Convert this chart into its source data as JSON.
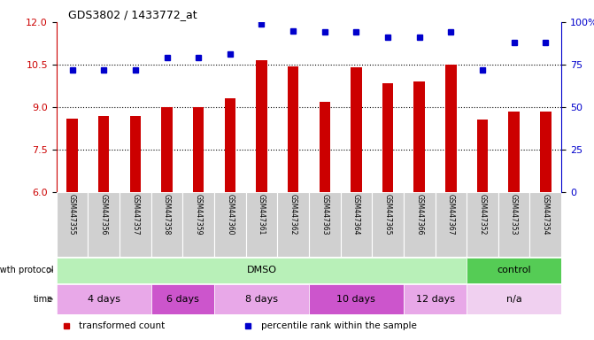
{
  "title": "GDS3802 / 1433772_at",
  "samples": [
    "GSM447355",
    "GSM447356",
    "GSM447357",
    "GSM447358",
    "GSM447359",
    "GSM447360",
    "GSM447361",
    "GSM447362",
    "GSM447363",
    "GSM447364",
    "GSM447365",
    "GSM447366",
    "GSM447367",
    "GSM447352",
    "GSM447353",
    "GSM447354"
  ],
  "bar_values": [
    8.6,
    8.7,
    8.7,
    9.0,
    9.0,
    9.3,
    10.65,
    10.45,
    9.2,
    10.4,
    9.85,
    9.9,
    10.5,
    8.55,
    8.85,
    8.85
  ],
  "dot_values": [
    72,
    72,
    72,
    79,
    79,
    81,
    99,
    95,
    94,
    94,
    91,
    91,
    94,
    72,
    88,
    88
  ],
  "ylim_left": [
    6,
    12
  ],
  "ylim_right": [
    0,
    100
  ],
  "yticks_left": [
    6,
    7.5,
    9,
    10.5,
    12
  ],
  "yticks_right": [
    0,
    25,
    50,
    75,
    100
  ],
  "bar_color": "#cc0000",
  "dot_color": "#0000cc",
  "grid_values": [
    7.5,
    9.0,
    10.5
  ],
  "growth_protocol_groups": [
    {
      "label": "DMSO",
      "color": "#b8f0b8",
      "start": 0,
      "end": 13
    },
    {
      "label": "control",
      "color": "#55cc55",
      "start": 13,
      "end": 16
    }
  ],
  "time_groups": [
    {
      "label": "4 days",
      "color": "#e8a8e8",
      "start": 0,
      "end": 3
    },
    {
      "label": "6 days",
      "color": "#cc55cc",
      "start": 3,
      "end": 5
    },
    {
      "label": "8 days",
      "color": "#e8a8e8",
      "start": 5,
      "end": 8
    },
    {
      "label": "10 days",
      "color": "#cc55cc",
      "start": 8,
      "end": 11
    },
    {
      "label": "12 days",
      "color": "#e8a8e8",
      "start": 11,
      "end": 13
    },
    {
      "label": "n/a",
      "color": "#f0d0f0",
      "start": 13,
      "end": 16
    }
  ],
  "legend_bar_color": "#cc0000",
  "legend_dot_color": "#0000cc",
  "legend_bar_label": "transformed count",
  "legend_dot_label": "percentile rank within the sample",
  "ylabel_left_color": "#cc0000",
  "ylabel_right_color": "#0000cc",
  "background_color": "#ffffff",
  "tick_area_color": "#d0d0d0"
}
